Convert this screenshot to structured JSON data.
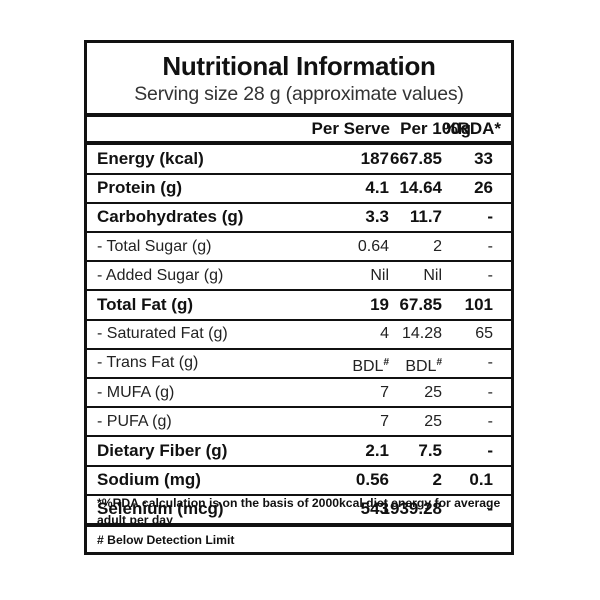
{
  "title": "Nutritional Information",
  "subtitle": "Serving size 28 g (approximate values)",
  "columns": {
    "per_serve": "Per Serve",
    "per_100g": "Per 100g",
    "rda": "%RDA*"
  },
  "rows": [
    {
      "label": "Energy (kcal)",
      "per_serve": "187",
      "per_100g": "667.85",
      "rda": "33",
      "bold": true
    },
    {
      "label": "Protein (g)",
      "per_serve": "4.1",
      "per_100g": "14.64",
      "rda": "26",
      "bold": true
    },
    {
      "label": "Carbohydrates (g)",
      "per_serve": "3.3",
      "per_100g": "11.7",
      "rda": "-",
      "bold": true
    },
    {
      "label": "- Total Sugar (g)",
      "per_serve": "0.64",
      "per_100g": "2",
      "rda": "-",
      "bold": false
    },
    {
      "label": "- Added Sugar (g)",
      "per_serve": "Nil",
      "per_100g": "Nil",
      "rda": "-",
      "bold": false
    },
    {
      "label": "Total Fat (g)",
      "per_serve": "19",
      "per_100g": "67.85",
      "rda": "101",
      "bold": true
    },
    {
      "label": "- Saturated Fat (g)",
      "per_serve": "4",
      "per_100g": "14.28",
      "rda": "65",
      "bold": false
    },
    {
      "label": "- Trans Fat (g)",
      "per_serve": "BDL",
      "per_100g": "BDL",
      "rda": "-",
      "bold": false,
      "mark": "#"
    },
    {
      "label": "- MUFA (g)",
      "per_serve": "7",
      "per_100g": "25",
      "rda": "-",
      "bold": false
    },
    {
      "label": "- PUFA (g)",
      "per_serve": "7",
      "per_100g": "25",
      "rda": "-",
      "bold": false
    },
    {
      "label": "Dietary Fiber (g)",
      "per_serve": "2.1",
      "per_100g": "7.5",
      "rda": "-",
      "bold": true
    },
    {
      "label": "Sodium (mg)",
      "per_serve": "0.56",
      "per_100g": "2",
      "rda": "0.1",
      "bold": true
    },
    {
      "label": "Selenium (mcg)",
      "per_serve": "543",
      "per_100g": "1939.28",
      "rda": "-",
      "bold": true
    }
  ],
  "notes": {
    "rda_note": "*%RDA calculation is on the basis of 2000kcal diet energy for average adult per day",
    "bdl_note": "# Below Detection Limit"
  }
}
